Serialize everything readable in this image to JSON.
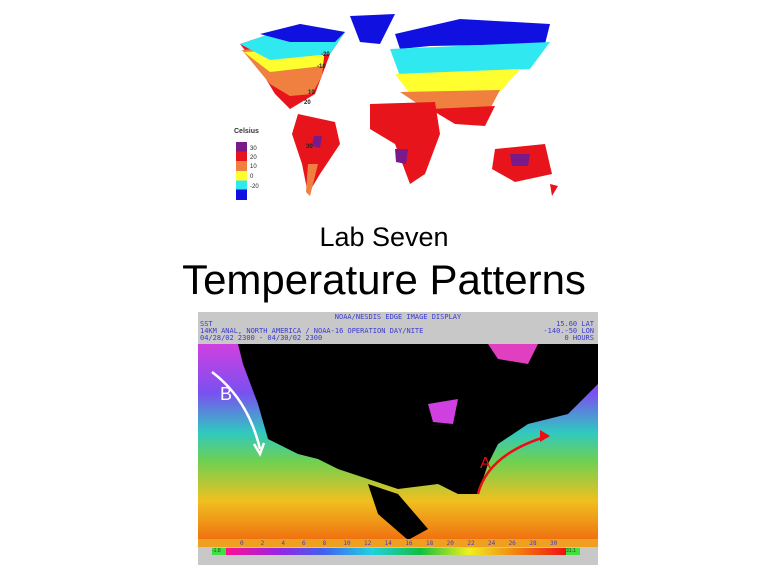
{
  "slide": {
    "subtitle": "Lab Seven",
    "title": "Temperature Patterns"
  },
  "world_map": {
    "legend_title": "Celsius",
    "legend_labels": [
      "30",
      "20",
      "10",
      "0",
      "-20"
    ],
    "legend_colors": [
      "#7a1a8a",
      "#e8141c",
      "#f08040",
      "#ffff30",
      "#30e8f0",
      "#1010e0"
    ],
    "map_labels": [
      "-20",
      "-10",
      "10",
      "20",
      "30"
    ]
  },
  "sst_image": {
    "header_center": "NOAA/NESDIS EDGE IMAGE DISPLAY",
    "header_left": [
      "SST",
      "14KM ANAL, NORTH AMERICA / NOAA-16 OPERATION DAY/NITE",
      "04/28/02 2300 - 04/30/02 2300"
    ],
    "header_right": [
      "15.60 LAT",
      "-140.-50 LON",
      "0 HOURS"
    ],
    "arrow_labels": {
      "a": "A",
      "b": "B"
    },
    "colorbar_ticks": [
      "0",
      "2",
      "4",
      "6",
      "8",
      "10",
      "12",
      "14",
      "16",
      "18",
      "20",
      "22",
      "24",
      "26",
      "28",
      "30"
    ],
    "colorbar_min": "-1.8",
    "colorbar_max": "31.1"
  }
}
